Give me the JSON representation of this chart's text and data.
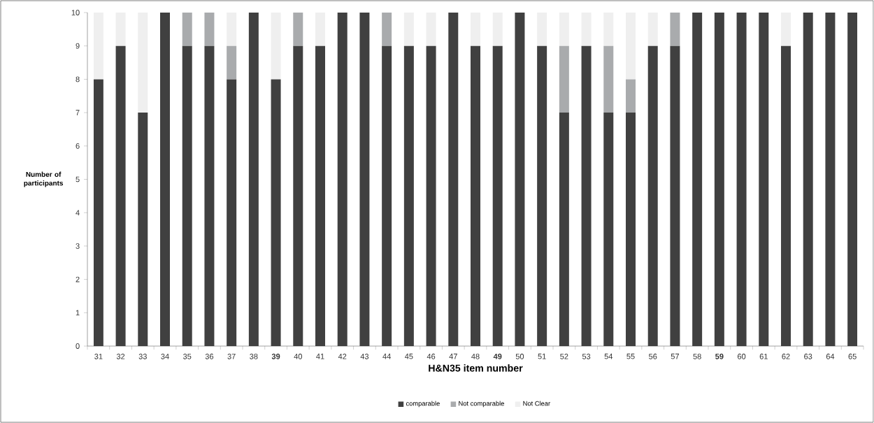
{
  "chart_data": {
    "type": "bar",
    "stacked": true,
    "xlabel": "H&N35 item number",
    "ylabel": "Number of participants",
    "categories": [
      "31",
      "32",
      "33",
      "34",
      "35",
      "36",
      "37",
      "38",
      "**39**",
      "40",
      "41",
      "42",
      "43",
      "44",
      "45",
      "46",
      "47",
      "48",
      "**49**",
      "50",
      "51",
      "52",
      "53",
      "54",
      "55",
      "56",
      "57",
      "58",
      "**59**",
      "60",
      "61",
      "62",
      "63",
      "64",
      "65"
    ],
    "series": [
      {
        "name": "comparable",
        "color": "#404040",
        "values": [
          8,
          9,
          7,
          10,
          9,
          9,
          8,
          10,
          8,
          9,
          9,
          10,
          10,
          9,
          9,
          9,
          10,
          9,
          9,
          10,
          9,
          7,
          9,
          7,
          7,
          9,
          9,
          10,
          10,
          10,
          10,
          9,
          10,
          10,
          10
        ]
      },
      {
        "name": "Not comparable",
        "color": "#a9abad",
        "values": [
          0,
          0,
          0,
          0,
          1,
          1,
          1,
          0,
          0,
          1,
          0,
          0,
          0,
          1,
          0,
          0,
          0,
          0,
          0,
          0,
          0,
          2,
          0,
          2,
          1,
          0,
          1,
          0,
          0,
          0,
          0,
          0,
          0,
          0,
          0
        ]
      },
      {
        "name": "Not Clear",
        "color": "#efefef",
        "values": [
          2,
          1,
          3,
          0,
          0,
          0,
          1,
          0,
          2,
          0,
          1,
          0,
          0,
          0,
          1,
          1,
          0,
          1,
          1,
          0,
          1,
          1,
          1,
          1,
          2,
          1,
          0,
          0,
          0,
          0,
          0,
          1,
          0,
          0,
          0
        ]
      }
    ],
    "ylim": [
      0,
      10
    ],
    "yticks": [
      0,
      1,
      2,
      3,
      4,
      5,
      6,
      7,
      8,
      9,
      10
    ],
    "legend": "bottom"
  }
}
